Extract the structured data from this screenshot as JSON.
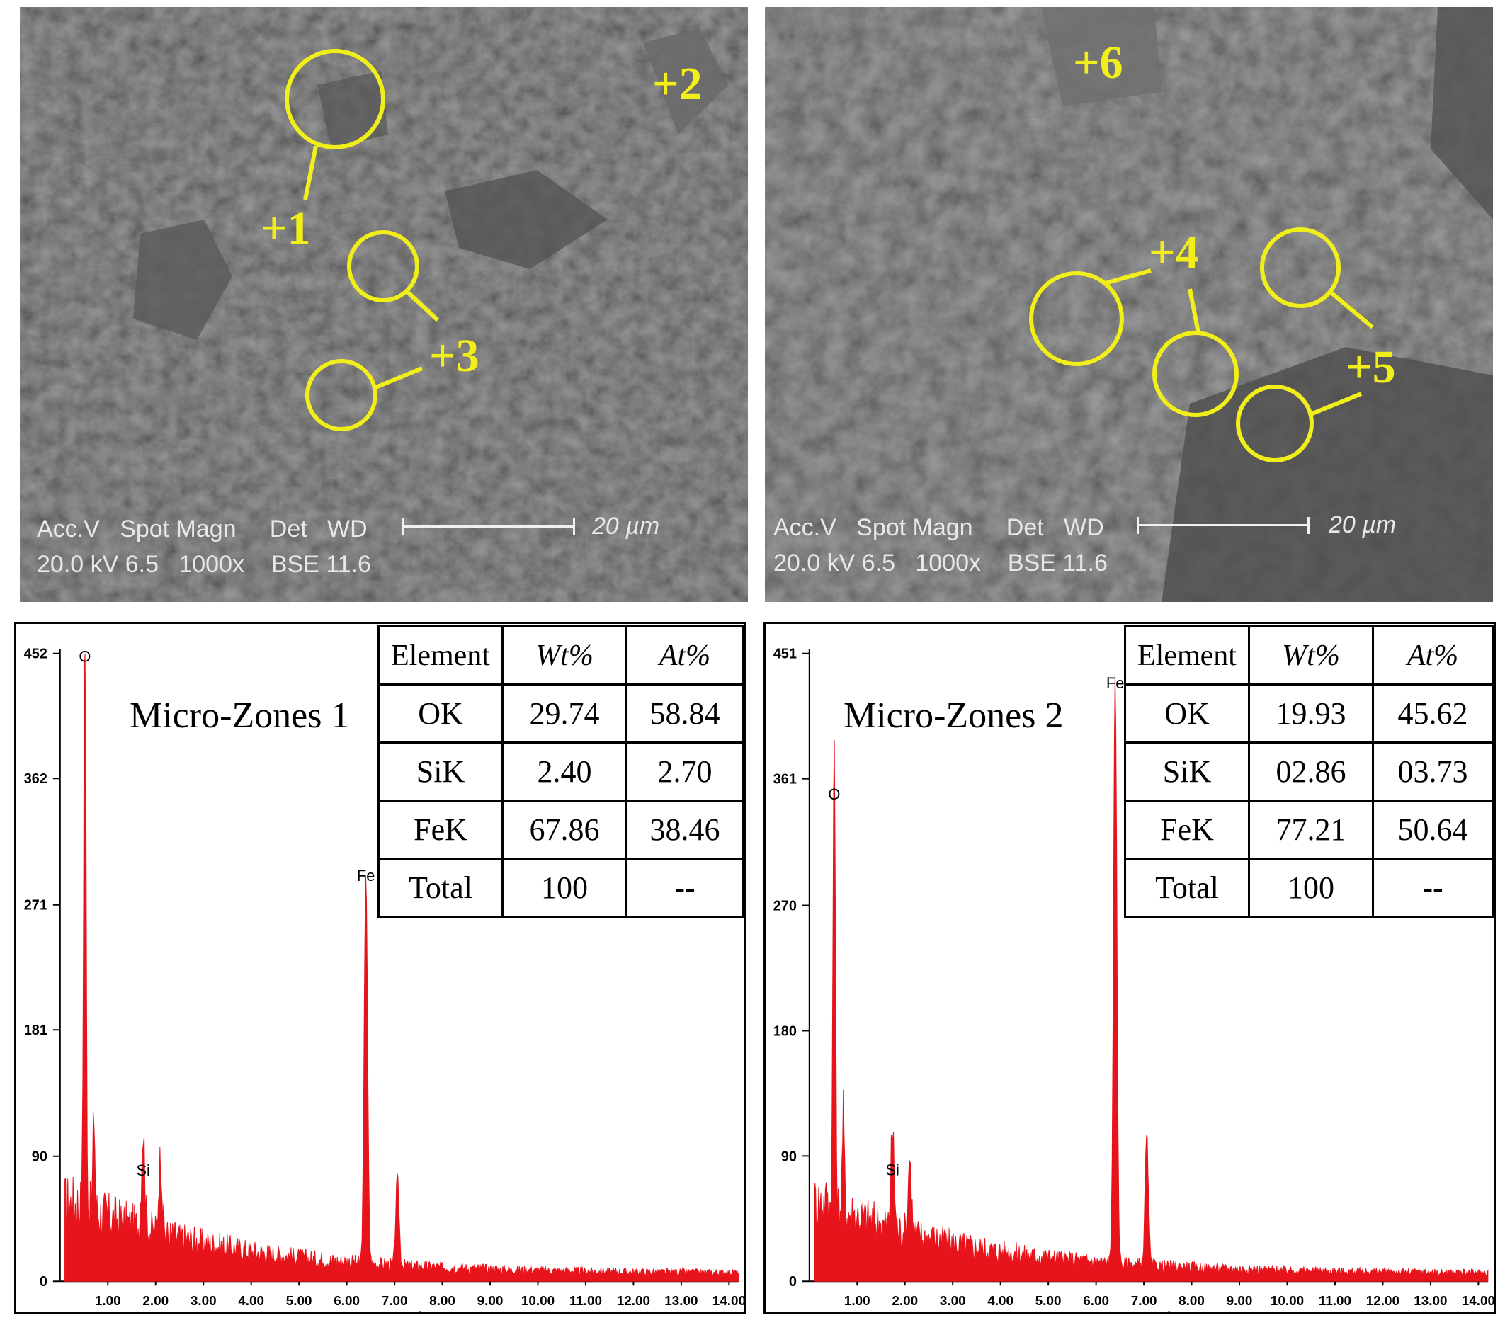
{
  "sem_left": {
    "markers": [
      "+1",
      "+2",
      "+3"
    ],
    "meta_line1": "Acc.V   Spot Magn     Det   WD",
    "meta_line2": "20.0 kV 6.5   1000x    BSE 11.6",
    "scale_label": "20 µm"
  },
  "sem_right": {
    "markers": [
      "+6",
      "+4",
      "+5"
    ],
    "meta_line1": "Acc.V   Spot Magn     Det   WD",
    "meta_line2": "20.0 kV 6.5   1000x    BSE 11.6",
    "scale_label": "20 µm"
  },
  "colors": {
    "marker": "#f2ee1a",
    "spectrum": "#e8141c",
    "sem_bg": "#3a3a3a"
  },
  "chart_data": [
    {
      "type": "area",
      "title": "Micro-Zones 1",
      "xlabel": "Energy - keV",
      "ylabel": "",
      "xlim": [
        0,
        14.2
      ],
      "ylim": [
        0,
        452
      ],
      "y_ticks": [
        0,
        90,
        181,
        271,
        362,
        452
      ],
      "x_ticks": [
        "1.00",
        "2.00",
        "3.00",
        "4.00",
        "5.00",
        "6.00",
        "7.00",
        "8.00",
        "9.00",
        "10.00",
        "11.00",
        "12.00",
        "13.00",
        "14.00"
      ],
      "peaks": [
        {
          "label": "O",
          "x": 0.52,
          "y": 440
        },
        {
          "label": "Si",
          "x": 1.74,
          "y": 70
        },
        {
          "label": "Fe",
          "x": 6.4,
          "y": 282
        }
      ],
      "table": {
        "headers": [
          "Element",
          "Wt%",
          "At%"
        ],
        "rows": [
          [
            "OK",
            "29.74",
            "58.84"
          ],
          [
            "SiK",
            "2.40",
            "2.70"
          ],
          [
            "FeK",
            "67.86",
            "38.46"
          ],
          [
            "Total",
            "100",
            "--"
          ]
        ]
      }
    },
    {
      "type": "area",
      "title": "Micro-Zones 2",
      "xlabel": "Energy - keV",
      "ylabel": "",
      "xlim": [
        0,
        14.2
      ],
      "ylim": [
        0,
        451
      ],
      "y_ticks": [
        0,
        90,
        180,
        270,
        361,
        451
      ],
      "x_ticks": [
        "1.00",
        "2.00",
        "3.00",
        "4.00",
        "5.00",
        "6.00",
        "7.00",
        "8.00",
        "9.00",
        "10.00",
        "11.00",
        "12.00",
        "13.00",
        "14.00"
      ],
      "peaks": [
        {
          "label": "O",
          "x": 0.52,
          "y": 340
        },
        {
          "label": "Si",
          "x": 1.74,
          "y": 70
        },
        {
          "label": "Fe",
          "x": 6.4,
          "y": 420
        }
      ],
      "table": {
        "headers": [
          "Element",
          "Wt%",
          "At%"
        ],
        "rows": [
          [
            "OK",
            "19.93",
            "45.62"
          ],
          [
            "SiK",
            "02.86",
            "03.73"
          ],
          [
            "FeK",
            "77.21",
            "50.64"
          ],
          [
            "Total",
            "100",
            "--"
          ]
        ]
      }
    }
  ]
}
